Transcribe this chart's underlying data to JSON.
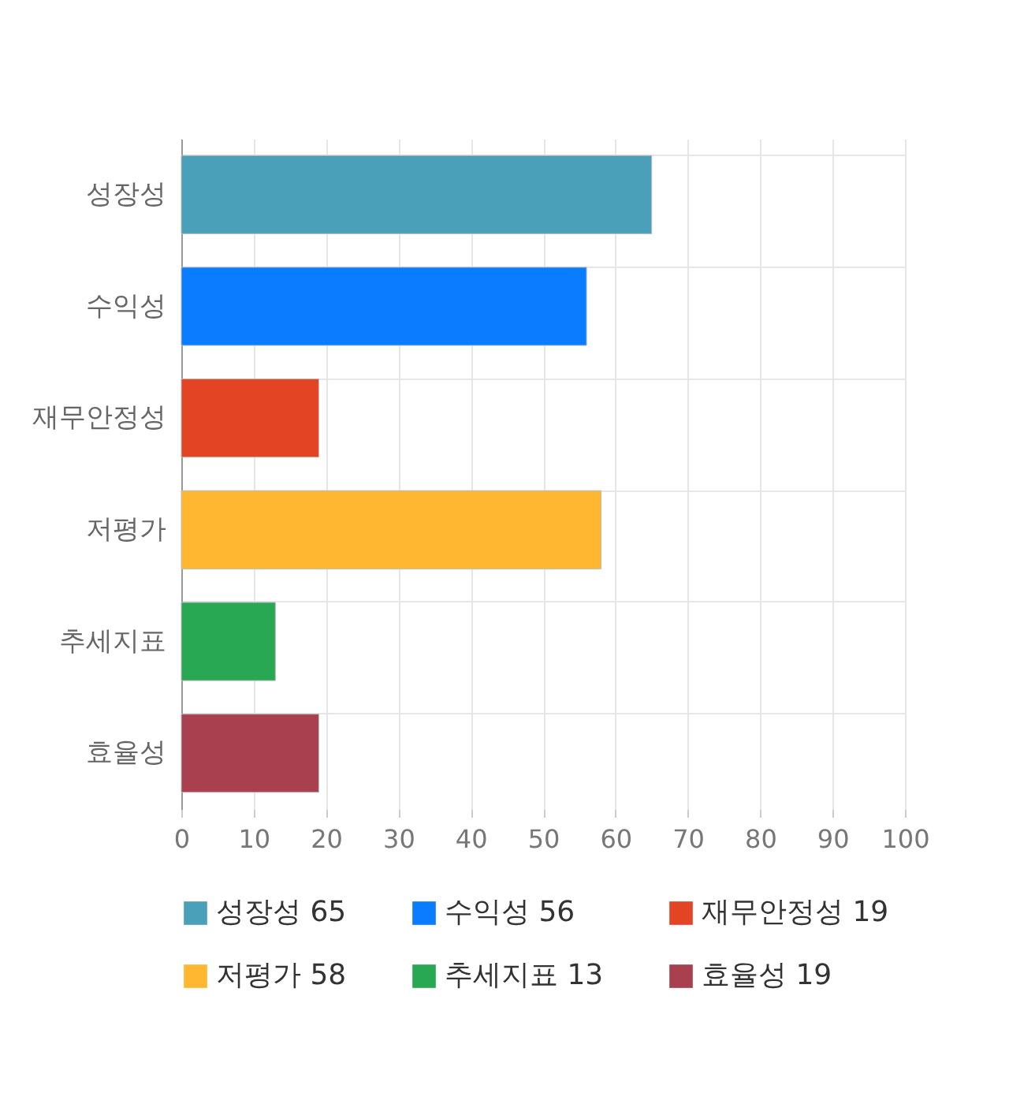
{
  "chart_data": {
    "type": "bar",
    "orientation": "horizontal",
    "stacked": true,
    "categories": [
      "성장성",
      "수익성",
      "재무안정성",
      "저평가",
      "추세지표",
      "효율성"
    ],
    "series": [
      {
        "name": "성장성 65",
        "color": "#4aa0b8",
        "values": [
          65,
          null,
          null,
          null,
          null,
          null
        ]
      },
      {
        "name": "수익성 56",
        "color": "#0a7cff",
        "values": [
          null,
          56,
          null,
          null,
          null,
          null
        ]
      },
      {
        "name": "재무안정성 19",
        "color": "#e34524",
        "values": [
          null,
          null,
          19,
          null,
          null,
          null
        ]
      },
      {
        "name": "저평가 58",
        "color": "#ffb732",
        "values": [
          null,
          null,
          null,
          58,
          null,
          null
        ]
      },
      {
        "name": "추세지표 13",
        "color": "#29a853",
        "values": [
          null,
          null,
          null,
          null,
          13,
          null
        ]
      },
      {
        "name": "효율성 19",
        "color": "#a8404f",
        "values": [
          null,
          null,
          null,
          null,
          null,
          19
        ]
      }
    ],
    "xlim": [
      0,
      100
    ],
    "xticks": [
      0,
      10,
      20,
      30,
      40,
      50,
      60,
      70,
      80,
      90,
      100
    ],
    "grid": true,
    "legend": "bottom"
  }
}
